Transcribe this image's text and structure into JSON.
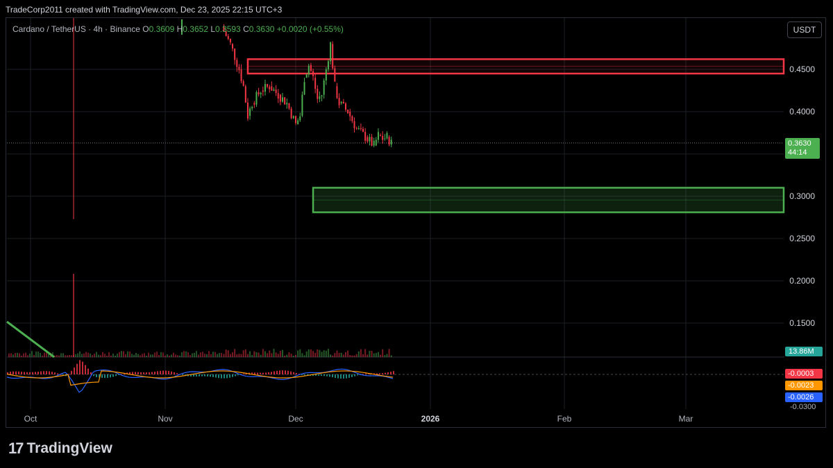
{
  "header": {
    "text": "TradeCorp2011 created with TradingView.com, Dec 23, 2025 22:15 UTC+3"
  },
  "legend": {
    "symbol": "Cardano / TetherUS · 4h · Binance",
    "o_label": "O",
    "o_value": "0.3609",
    "h_label": "H",
    "h_value": "0.3652",
    "l_label": "L",
    "l_value": "0.3593",
    "c_label": "C",
    "c_value": "0.3630",
    "change": "+0.0020 (+0.55%)"
  },
  "currency_button": {
    "label": "USDT"
  },
  "price_tag": {
    "price": "0.3630",
    "countdown": "44:14"
  },
  "volume_tag": {
    "value": "13.86M"
  },
  "macd_tags": [
    {
      "value": "-0.0003",
      "color": "#f23645"
    },
    {
      "value": "-0.0023",
      "color": "#ff9800"
    },
    {
      "value": "-0.0026",
      "color": "#2962ff"
    }
  ],
  "macd_axis_label": "-0.0300",
  "logo": {
    "mark": "17",
    "text": "TradingView"
  },
  "colors": {
    "up": "#4caf50",
    "down": "#f23645",
    "resistance": "#f23645",
    "support": "#4caf50",
    "background": "#000000"
  },
  "chart_data": {
    "type": "candlestick",
    "symbol": "Cardano / TetherUS",
    "interval": "4h",
    "exchange": "Binance",
    "y_ticks": [
      "0.4500",
      "0.4000",
      "0.3500",
      "0.3000",
      "0.2500",
      "0.2000",
      "0.1500"
    ],
    "x_ticks": [
      "Oct",
      "Nov",
      "Dec",
      "2026",
      "Feb",
      "Mar"
    ],
    "ylim": [
      0.12,
      0.51
    ],
    "last_price": 0.363,
    "zones": [
      {
        "kind": "resistance",
        "low": 0.445,
        "high": 0.462,
        "start": "Nov 20"
      },
      {
        "kind": "support",
        "low": 0.281,
        "high": 0.31,
        "start": "Dec 5"
      }
    ],
    "price_path": [
      [
        "Nov 14",
        0.5
      ],
      [
        "Nov 16",
        0.48
      ],
      [
        "Nov 18",
        0.45
      ],
      [
        "Nov 19",
        0.43
      ],
      [
        "Nov 20",
        0.395
      ],
      [
        "Nov 21",
        0.41
      ],
      [
        "Nov 23",
        0.425
      ],
      [
        "Nov 25",
        0.43
      ],
      [
        "Nov 27",
        0.42
      ],
      [
        "Nov 29",
        0.41
      ],
      [
        "Dec 1",
        0.385
      ],
      [
        "Dec 2",
        0.395
      ],
      [
        "Dec 3",
        0.44
      ],
      [
        "Dec 4",
        0.455
      ],
      [
        "Dec 5",
        0.44
      ],
      [
        "Dec 6",
        0.415
      ],
      [
        "Dec 7",
        0.42
      ],
      [
        "Dec 8",
        0.45
      ],
      [
        "Dec 9",
        0.48
      ],
      [
        "Dec 10",
        0.43
      ],
      [
        "Dec 11",
        0.41
      ],
      [
        "Dec 13",
        0.4
      ],
      [
        "Dec 15",
        0.38
      ],
      [
        "Dec 17",
        0.37
      ],
      [
        "Dec 19",
        0.36
      ],
      [
        "Dec 20",
        0.372
      ],
      [
        "Dec 21",
        0.368
      ],
      [
        "Dec 22",
        0.37
      ],
      [
        "Dec 23",
        0.363
      ]
    ]
  }
}
